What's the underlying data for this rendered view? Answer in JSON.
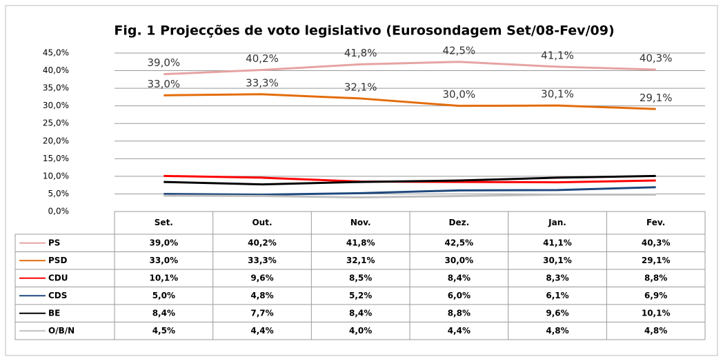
{
  "chart_data": {
    "type": "line",
    "title": "Fig. 1 Projecções de voto legislativo (Eurosondagem  Set/08-Fev/09)",
    "categories": [
      "Set.",
      "Out.",
      "Nov.",
      "Dez.",
      "Jan.",
      "Fev."
    ],
    "series": [
      {
        "name": "PS",
        "color": "#e6a3a3",
        "values": [
          39.0,
          40.2,
          41.8,
          42.5,
          41.1,
          40.3
        ],
        "value_labels": [
          "39,0%",
          "40,2%",
          "41,8%",
          "42,5%",
          "41,1%",
          "40,3%"
        ],
        "data_labels": true
      },
      {
        "name": "PSD",
        "color": "#e46c0a",
        "values": [
          33.0,
          33.3,
          32.1,
          30.0,
          30.1,
          29.1
        ],
        "value_labels": [
          "33,0%",
          "33,3%",
          "32,1%",
          "30,0%",
          "30,1%",
          "29,1%"
        ],
        "data_labels": true
      },
      {
        "name": "CDU",
        "color": "#ff0000",
        "values": [
          10.1,
          9.6,
          8.5,
          8.4,
          8.3,
          8.8
        ],
        "value_labels": [
          "10,1%",
          "9,6%",
          "8,5%",
          "8,4%",
          "8,3%",
          "8,8%"
        ],
        "data_labels": false
      },
      {
        "name": "CDS",
        "color": "#1f497d",
        "values": [
          5.0,
          4.8,
          5.2,
          6.0,
          6.1,
          6.9
        ],
        "value_labels": [
          "5,0%",
          "4,8%",
          "5,2%",
          "6,0%",
          "6,1%",
          "6,9%"
        ],
        "data_labels": false
      },
      {
        "name": "BE",
        "color": "#000000",
        "values": [
          8.4,
          7.7,
          8.4,
          8.8,
          9.6,
          10.1
        ],
        "value_labels": [
          "8,4%",
          "7,7%",
          "8,4%",
          "8,8%",
          "9,6%",
          "10,1%"
        ],
        "data_labels": false
      },
      {
        "name": "O/B/N",
        "color": "#bfbfbf",
        "values": [
          4.5,
          4.4,
          4.0,
          4.4,
          4.8,
          4.8
        ],
        "value_labels": [
          "4,5%",
          "4,4%",
          "4,0%",
          "4,4%",
          "4,8%",
          "4,8%"
        ],
        "data_labels": false
      }
    ],
    "ylim": [
      0,
      45
    ],
    "yticks": [
      {
        "value": 0,
        "label": "0,0%"
      },
      {
        "value": 5,
        "label": "5,0%"
      },
      {
        "value": 10,
        "label": "10,0%"
      },
      {
        "value": 15,
        "label": "15,0%"
      },
      {
        "value": 20,
        "label": "20,0%"
      },
      {
        "value": 25,
        "label": "25,0%"
      },
      {
        "value": 30,
        "label": "30,0%"
      },
      {
        "value": 35,
        "label": "35,0%"
      },
      {
        "value": 40,
        "label": "40,0%"
      },
      {
        "value": 45,
        "label": "45,0%"
      }
    ],
    "grid": true
  }
}
